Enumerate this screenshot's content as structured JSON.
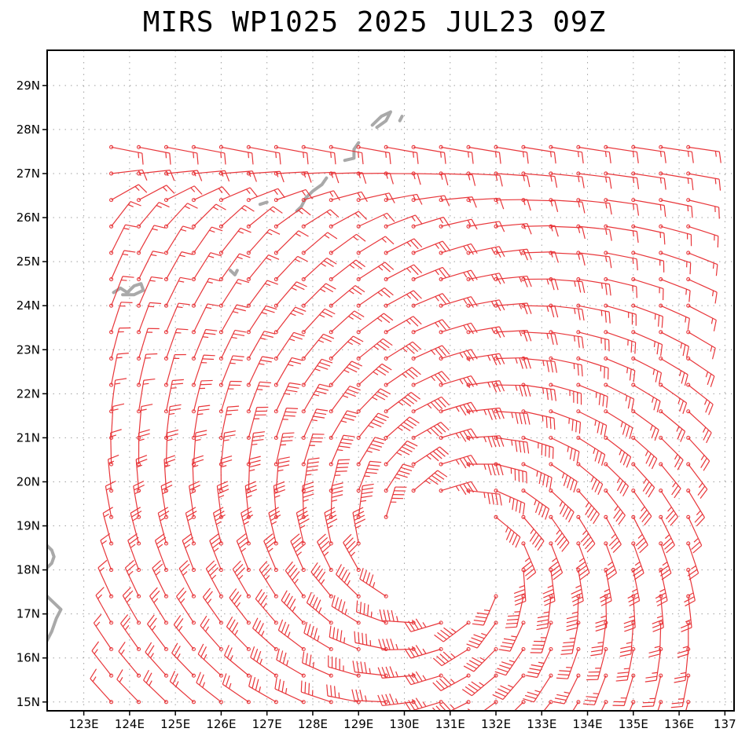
{
  "title": "MIRS WP1025 2025 JUL23 09Z",
  "colors": {
    "wind": "#e8363a",
    "land": "#a9a9a9",
    "frame": "#000000",
    "grid": "#a0a0a0"
  },
  "map": {
    "lon_range": [
      122.2,
      137.2
    ],
    "lat_range": [
      14.8,
      29.8
    ],
    "grid_step_deg": 1,
    "grid_style": "dotted"
  },
  "axes": {
    "lon_labels": [
      "123E",
      "124E",
      "125E",
      "126E",
      "127E",
      "128E",
      "129E",
      "130E",
      "131E",
      "132E",
      "133E",
      "134E",
      "135E",
      "136E",
      "137"
    ],
    "lat_labels": [
      "15N",
      "16N",
      "17N",
      "18N",
      "19N",
      "20N",
      "21N",
      "22N",
      "23N",
      "24N",
      "25N",
      "26N",
      "27N",
      "28N",
      "29N"
    ]
  },
  "wind_field": {
    "type": "wind barbs",
    "center_lon": 130.8,
    "center_lat": 18.4,
    "spacing_deg": 0.6,
    "lon_range": [
      123.6,
      136.4
    ],
    "lat_range": [
      15.0,
      27.6
    ]
  }
}
